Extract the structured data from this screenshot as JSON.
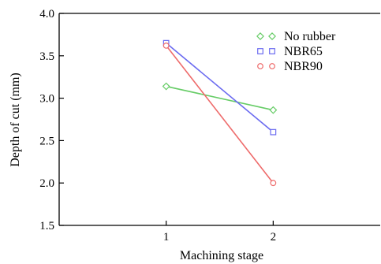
{
  "chart_data": {
    "type": "line",
    "title": "",
    "xlabel": "Machining stage",
    "ylabel": "Depth of cut (mm)",
    "x": [
      1,
      2
    ],
    "xlim": [
      0,
      3
    ],
    "ylim": [
      1.5,
      4.0
    ],
    "x_ticks": [
      "1",
      "2"
    ],
    "y_ticks": [
      "1.5",
      "2.0",
      "2.5",
      "3.0",
      "3.5",
      "4.0"
    ],
    "grid": false,
    "legend_position": "top-right",
    "series": [
      {
        "name": "No rubber",
        "values": [
          3.14,
          2.86
        ],
        "color": "#66cc66",
        "marker": "diamond"
      },
      {
        "name": "NBR65",
        "values": [
          3.65,
          2.6
        ],
        "color": "#6b6bf0",
        "marker": "square"
      },
      {
        "name": "NBR90",
        "values": [
          3.62,
          2.0
        ],
        "color": "#ee6b6b",
        "marker": "circle"
      }
    ]
  }
}
